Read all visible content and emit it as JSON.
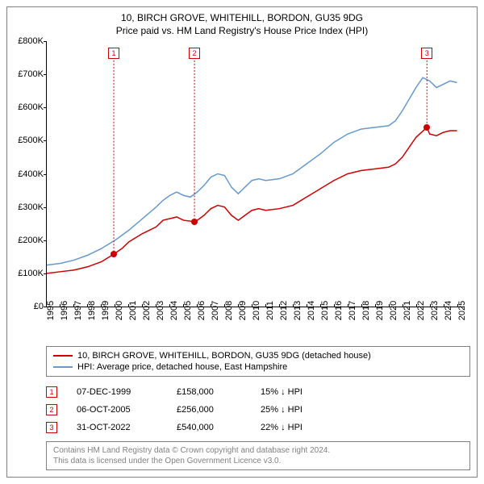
{
  "title_main": "10, BIRCH GROVE, WHITEHILL, BORDON, GU35 9DG",
  "title_sub": "Price paid vs. HM Land Registry's House Price Index (HPI)",
  "y_axis": {
    "ticks": [
      "£0",
      "£100K",
      "£200K",
      "£300K",
      "£400K",
      "£500K",
      "£600K",
      "£700K",
      "£800K"
    ],
    "max": 800
  },
  "x_axis": {
    "labels": [
      "1995",
      "1996",
      "1997",
      "1998",
      "1999",
      "2000",
      "2001",
      "2002",
      "2003",
      "2004",
      "2005",
      "2006",
      "2007",
      "2008",
      "2009",
      "2010",
      "2011",
      "2012",
      "2013",
      "2014",
      "2015",
      "2016",
      "2017",
      "2018",
      "2019",
      "2020",
      "2021",
      "2022",
      "2023",
      "2024",
      "2025"
    ],
    "year_min": 1995,
    "year_max": 2025.5
  },
  "series": {
    "property": {
      "color": "#cc0000",
      "label": "10, BIRCH GROVE, WHITEHILL, BORDON, GU35 9DG (detached house)",
      "data": [
        [
          1995,
          100
        ],
        [
          1996,
          105
        ],
        [
          1997,
          110
        ],
        [
          1998,
          120
        ],
        [
          1999,
          135
        ],
        [
          1999.9,
          158
        ],
        [
          2000.5,
          175
        ],
        [
          2001,
          195
        ],
        [
          2002,
          220
        ],
        [
          2003,
          240
        ],
        [
          2003.5,
          260
        ],
        [
          2004,
          265
        ],
        [
          2004.5,
          270
        ],
        [
          2005,
          260
        ],
        [
          2005.8,
          256
        ],
        [
          2006,
          260
        ],
        [
          2006.5,
          275
        ],
        [
          2007,
          295
        ],
        [
          2007.5,
          305
        ],
        [
          2008,
          300
        ],
        [
          2008.5,
          275
        ],
        [
          2009,
          260
        ],
        [
          2009.5,
          275
        ],
        [
          2010,
          290
        ],
        [
          2010.5,
          295
        ],
        [
          2011,
          290
        ],
        [
          2012,
          295
        ],
        [
          2013,
          305
        ],
        [
          2014,
          330
        ],
        [
          2015,
          355
        ],
        [
          2016,
          380
        ],
        [
          2017,
          400
        ],
        [
          2018,
          410
        ],
        [
          2019,
          415
        ],
        [
          2020,
          420
        ],
        [
          2020.5,
          430
        ],
        [
          2021,
          450
        ],
        [
          2021.5,
          480
        ],
        [
          2022,
          510
        ],
        [
          2022.8,
          540
        ],
        [
          2023,
          520
        ],
        [
          2023.5,
          515
        ],
        [
          2024,
          525
        ],
        [
          2024.5,
          530
        ],
        [
          2025,
          530
        ]
      ]
    },
    "hpi": {
      "color": "#6699cc",
      "label": "HPI: Average price, detached house, East Hampshire",
      "data": [
        [
          1995,
          125
        ],
        [
          1996,
          130
        ],
        [
          1997,
          140
        ],
        [
          1998,
          155
        ],
        [
          1999,
          175
        ],
        [
          2000,
          200
        ],
        [
          2001,
          230
        ],
        [
          2002,
          265
        ],
        [
          2003,
          300
        ],
        [
          2003.5,
          320
        ],
        [
          2004,
          335
        ],
        [
          2004.5,
          345
        ],
        [
          2005,
          335
        ],
        [
          2005.5,
          330
        ],
        [
          2006,
          345
        ],
        [
          2006.5,
          365
        ],
        [
          2007,
          390
        ],
        [
          2007.5,
          400
        ],
        [
          2008,
          395
        ],
        [
          2008.5,
          360
        ],
        [
          2009,
          340
        ],
        [
          2009.5,
          360
        ],
        [
          2010,
          380
        ],
        [
          2010.5,
          385
        ],
        [
          2011,
          380
        ],
        [
          2012,
          385
        ],
        [
          2013,
          400
        ],
        [
          2014,
          430
        ],
        [
          2015,
          460
        ],
        [
          2016,
          495
        ],
        [
          2017,
          520
        ],
        [
          2018,
          535
        ],
        [
          2019,
          540
        ],
        [
          2020,
          545
        ],
        [
          2020.5,
          560
        ],
        [
          2021,
          590
        ],
        [
          2021.5,
          625
        ],
        [
          2022,
          660
        ],
        [
          2022.5,
          690
        ],
        [
          2023,
          680
        ],
        [
          2023.5,
          660
        ],
        [
          2024,
          670
        ],
        [
          2024.5,
          680
        ],
        [
          2025,
          675
        ]
      ]
    }
  },
  "annotations": [
    {
      "num": "1",
      "year": 1999.9,
      "value": 158,
      "date": "07-DEC-1999",
      "price": "£158,000",
      "pct": "15% ↓ HPI",
      "color": "#cc0000"
    },
    {
      "num": "2",
      "year": 2005.8,
      "value": 256,
      "date": "06-OCT-2005",
      "price": "£256,000",
      "pct": "25% ↓ HPI",
      "color": "#cc0000"
    },
    {
      "num": "3",
      "year": 2022.8,
      "value": 540,
      "date": "31-OCT-2022",
      "price": "£540,000",
      "pct": "22% ↓ HPI",
      "color": "#cc0000"
    }
  ],
  "footer_line1": "Contains HM Land Registry data © Crown copyright and database right 2024.",
  "footer_line2": "This data is licensed under the Open Government Licence v3.0."
}
